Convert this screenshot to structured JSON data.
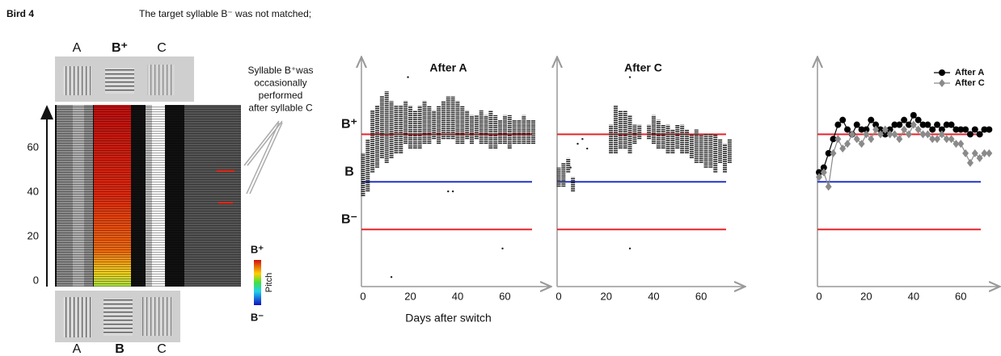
{
  "header": {
    "bird": "Bird 4",
    "caption": "The target syllable B⁻ was not matched;"
  },
  "spectrogram": {
    "top_labels": [
      "A",
      "B⁺",
      "C"
    ],
    "bottom_labels": [
      "A",
      "B",
      "C"
    ],
    "ylim": [
      0,
      75
    ],
    "yticks": [
      0,
      20,
      40,
      60
    ],
    "annotation": [
      "Syllable B⁺was",
      "occasionally",
      "performed",
      "after syllable C"
    ],
    "colorbar": {
      "top": "B⁺",
      "label": "Pitch",
      "bottom": "B⁻"
    }
  },
  "chart_data": [
    {
      "type": "range",
      "title": "After A",
      "xlabel": "Days after switch",
      "xlim": [
        0,
        79
      ],
      "xticks": [
        0,
        20,
        40,
        60
      ],
      "ylim": [
        -2.2,
        2.6
      ],
      "color": "#222",
      "reference_lines": [
        {
          "label": "B⁺",
          "value": 1,
          "color": "#e8232a"
        },
        {
          "label": "B",
          "value": 0,
          "color": "#2233cc"
        },
        {
          "label": "B⁻",
          "value": -1,
          "color": "#e8232a"
        }
      ],
      "x": [
        0,
        2,
        4,
        6,
        8,
        10,
        12,
        14,
        16,
        18,
        20,
        22,
        24,
        26,
        28,
        30,
        32,
        34,
        36,
        38,
        40,
        42,
        44,
        46,
        48,
        50,
        52,
        54,
        56,
        58,
        60,
        62,
        64,
        66,
        68,
        70,
        72
      ],
      "low": [
        -0.3,
        -0.2,
        0.2,
        0.3,
        0.5,
        0.4,
        0.5,
        0.6,
        0.6,
        0.8,
        0.7,
        0.7,
        0.7,
        0.8,
        0.8,
        0.9,
        0.8,
        0.9,
        0.9,
        0.9,
        0.8,
        0.8,
        0.9,
        0.8,
        0.9,
        0.8,
        0.8,
        0.7,
        0.7,
        0.8,
        0.8,
        0.7,
        0.8,
        0.8,
        0.8,
        0.8,
        0.8
      ],
      "high": [
        0.6,
        0.9,
        1.5,
        1.6,
        1.8,
        1.9,
        1.7,
        1.6,
        1.6,
        1.7,
        1.6,
        1.5,
        1.6,
        1.7,
        1.6,
        1.5,
        1.6,
        1.7,
        1.8,
        1.8,
        1.7,
        1.6,
        1.5,
        1.4,
        1.4,
        1.5,
        1.4,
        1.5,
        1.4,
        1.3,
        1.4,
        1.4,
        1.3,
        1.3,
        1.4,
        1.3,
        1.3
      ],
      "outliers": {
        "x": [
          19,
          12,
          36,
          38,
          59
        ],
        "y": [
          2.2,
          -2.0,
          -0.2,
          -0.2,
          -1.4
        ]
      }
    },
    {
      "type": "range",
      "title": "After C",
      "xlim": [
        0,
        78
      ],
      "xticks": [
        0,
        20,
        40,
        60
      ],
      "ylim": [
        -2.2,
        2.6
      ],
      "color": "#222",
      "reference_lines": [
        {
          "value": 1,
          "color": "#e8232a"
        },
        {
          "value": 0,
          "color": "#2233cc"
        },
        {
          "value": -1,
          "color": "#e8232a"
        }
      ],
      "x": [
        0,
        2,
        4,
        6,
        8,
        10,
        12,
        14,
        16,
        18,
        20,
        22,
        24,
        26,
        28,
        30,
        32,
        34,
        36,
        38,
        40,
        42,
        44,
        46,
        48,
        50,
        52,
        54,
        56,
        58,
        60,
        62,
        64,
        66,
        68,
        70,
        72
      ],
      "low": [
        -0.1,
        -0.1,
        0.2,
        -0.2,
        null,
        null,
        null,
        null,
        null,
        null,
        null,
        0.6,
        0.6,
        0.7,
        0.7,
        0.6,
        0.8,
        0.9,
        null,
        0.9,
        0.8,
        0.7,
        0.7,
        0.6,
        0.6,
        0.7,
        0.6,
        0.6,
        0.5,
        0.4,
        0.4,
        0.3,
        0.3,
        0.2,
        0.4,
        0.2,
        0.4
      ],
      "high": [
        0.3,
        0.4,
        0.5,
        0.1,
        null,
        null,
        null,
        null,
        null,
        null,
        null,
        1.2,
        1.6,
        1.5,
        1.5,
        1.4,
        1.2,
        1.2,
        null,
        1.2,
        1.4,
        1.3,
        1.2,
        1.2,
        1.1,
        1.2,
        1.2,
        1.1,
        1.0,
        1.1,
        1.0,
        1.0,
        1.0,
        1.0,
        0.9,
        0.8,
        0.9
      ],
      "outliers": {
        "x": [
          5,
          8,
          10,
          12,
          30,
          30
        ],
        "y": [
          0.3,
          0.8,
          0.9,
          0.7,
          2.2,
          -1.4
        ]
      }
    },
    {
      "type": "line",
      "xlim": [
        0,
        76
      ],
      "xticks": [
        0,
        20,
        40,
        60
      ],
      "ylim": [
        -2.2,
        2.6
      ],
      "legend": "upper right",
      "reference_lines": [
        {
          "value": 1,
          "color": "#e8232a"
        },
        {
          "value": 0,
          "color": "#2233cc"
        },
        {
          "value": -1,
          "color": "#e8232a"
        }
      ],
      "x": [
        0,
        2,
        4,
        6,
        8,
        10,
        12,
        14,
        16,
        18,
        20,
        22,
        24,
        26,
        28,
        30,
        32,
        34,
        36,
        38,
        40,
        42,
        44,
        46,
        48,
        50,
        52,
        54,
        56,
        58,
        60,
        62,
        64,
        66,
        68,
        70,
        72
      ],
      "series": [
        {
          "name": "After A",
          "color": "#000000",
          "marker": "circle",
          "values": [
            0.2,
            0.3,
            0.6,
            0.9,
            1.2,
            1.3,
            1.1,
            1.0,
            1.2,
            1.1,
            1.1,
            1.3,
            1.2,
            1.1,
            1.0,
            1.1,
            1.2,
            1.2,
            1.3,
            1.2,
            1.4,
            1.3,
            1.2,
            1.2,
            1.1,
            1.2,
            1.1,
            1.2,
            1.2,
            1.1,
            1.1,
            1.1,
            1.0,
            1.1,
            1.0,
            1.1,
            1.1
          ]
        },
        {
          "name": "After C",
          "color": "#8a8a8a",
          "marker": "diamond",
          "values": [
            0.1,
            0.2,
            -0.1,
            0.6,
            0.9,
            0.7,
            0.8,
            1.0,
            0.9,
            0.8,
            1.0,
            0.9,
            1.1,
            1.0,
            1.1,
            1.0,
            1.0,
            0.9,
            1.1,
            1.0,
            1.2,
            1.1,
            1.0,
            1.0,
            0.9,
            0.9,
            1.0,
            0.9,
            0.9,
            0.8,
            0.8,
            0.6,
            0.4,
            0.6,
            0.5,
            0.6,
            0.6
          ]
        }
      ]
    }
  ]
}
